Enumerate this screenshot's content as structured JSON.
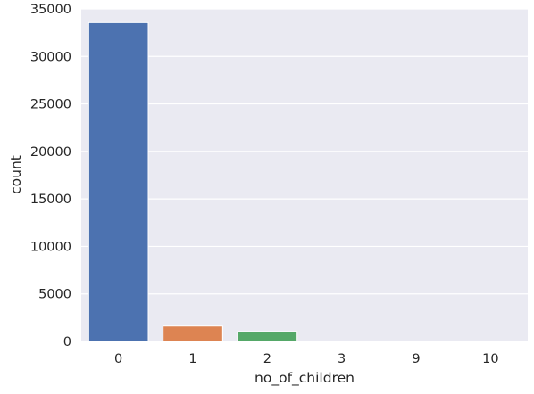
{
  "chart_data": {
    "type": "bar",
    "categories": [
      "0",
      "1",
      "2",
      "3",
      "9",
      "10"
    ],
    "values": [
      33560,
      1620,
      1040,
      8,
      3,
      2
    ],
    "xlabel": "no_of_children",
    "ylabel": "count",
    "ylim": [
      0,
      35000
    ],
    "yticks": [
      0,
      5000,
      10000,
      15000,
      20000,
      25000,
      30000,
      35000
    ],
    "grid": true,
    "legend": "none",
    "colors": [
      "#4c72b0",
      "#dd8452",
      "#55a868",
      "#c44e52",
      "#8172b3",
      "#937860"
    ],
    "background": "#eaeaf2"
  }
}
